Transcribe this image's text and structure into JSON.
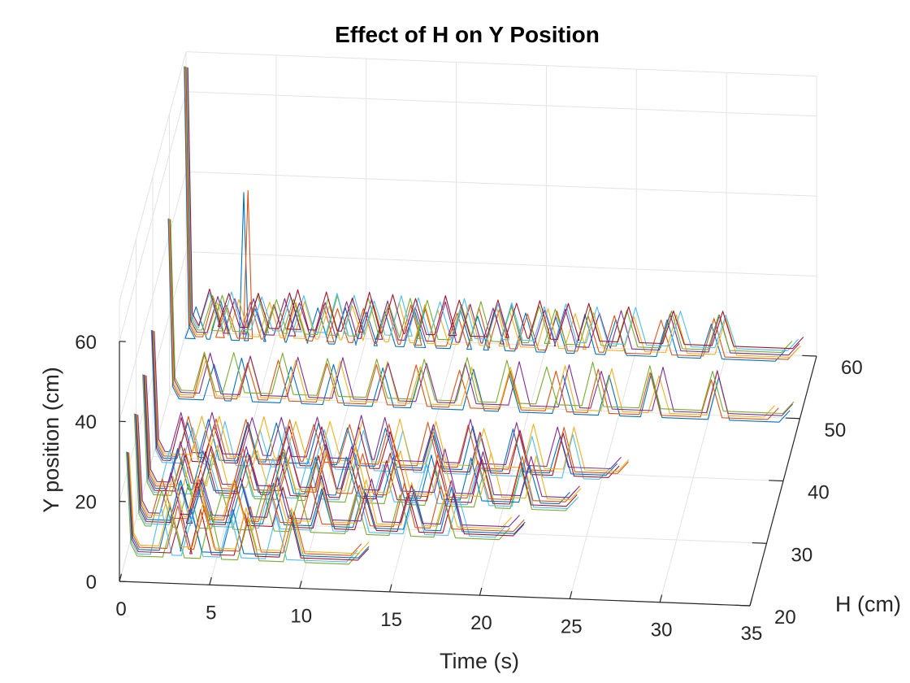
{
  "chart_data": {
    "type": "line",
    "subtype": "3d-waterfall",
    "title": "Effect of H on  Y Position",
    "xlabel": "Time (s)",
    "ylabel": "H (cm)",
    "zlabel": "Y position (cm)",
    "xlim": [
      0,
      35
    ],
    "ylim": [
      20,
      60
    ],
    "zlim": [
      0,
      70
    ],
    "grid": true,
    "x_ticks": [
      "0",
      "5",
      "10",
      "15",
      "20",
      "25",
      "30",
      "35"
    ],
    "y_ticks": [
      "20",
      "30",
      "40",
      "50",
      "60"
    ],
    "z_ticks": [
      "0",
      "20",
      "40",
      "60"
    ],
    "colors": [
      "#0072BD",
      "#D95319",
      "#EDB120",
      "#7E2F8E",
      "#77AC30",
      "#4DBEEE",
      "#A2142F"
    ],
    "slices": [
      {
        "H": 25,
        "duration": 13,
        "start_spike": 26,
        "bump_times": [
          2.5,
          4,
          6.5,
          9
        ],
        "bump_height": 11,
        "extra_spikes": [],
        "traces": 6
      },
      {
        "H": 30,
        "duration": 21,
        "start_spike": 28,
        "bump_times": [
          2,
          3.5,
          5.5,
          7.5,
          10,
          12.5,
          15,
          17.5
        ],
        "bump_height": 10,
        "extra_spikes": [],
        "traces": 7
      },
      {
        "H": 35,
        "duration": 24,
        "start_spike": 30,
        "bump_times": [
          2,
          3.5,
          5.5,
          7.5,
          9.5,
          11.5,
          13.5,
          16,
          18.5,
          21
        ],
        "bump_height": 10,
        "extra_spikes": [],
        "traces": 7
      },
      {
        "H": 40,
        "duration": 26,
        "start_spike": 33,
        "bump_times": [
          2,
          3.5,
          5.5,
          7.5,
          9.5,
          11.5,
          13.5,
          15.5,
          18,
          20.5,
          23
        ],
        "bump_height": 10,
        "extra_spikes": [],
        "traces": 6
      },
      {
        "H": 50,
        "duration": 34,
        "start_spike": 45,
        "bump_times": [
          2,
          4,
          6.5,
          9,
          11.5,
          14,
          16.5,
          19,
          21.5,
          24,
          27,
          30
        ],
        "bump_height": 10,
        "extra_spikes": [],
        "traces": 5
      },
      {
        "H": 60,
        "duration": 34,
        "start_spike": 68,
        "bump_times": [
          1.5,
          2.5,
          4,
          5.5,
          6.5,
          8,
          9,
          10.5,
          11.5,
          13,
          14,
          15.5,
          17,
          18,
          19.5,
          21,
          22.5,
          24.5,
          27,
          29.5
        ],
        "bump_height": 9,
        "extra_spikes": [
          {
            "t": 3.3,
            "height": 37
          }
        ],
        "traces": 7
      }
    ]
  }
}
